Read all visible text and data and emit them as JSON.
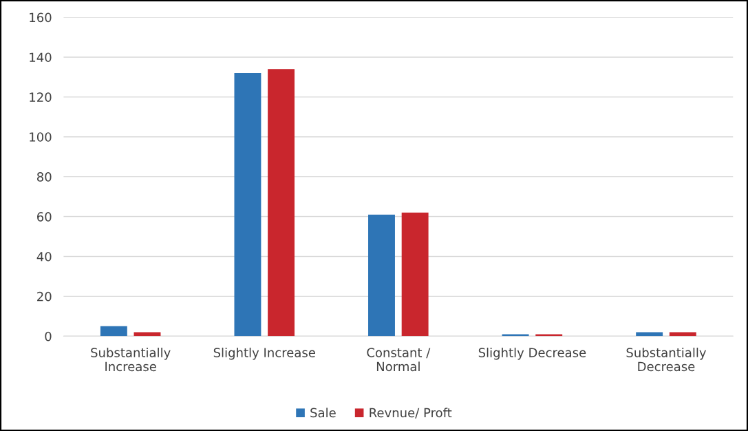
{
  "chart_data": {
    "type": "bar",
    "categories": [
      "Substantially\nIncrease",
      "Slightly Increase",
      "Constant /\nNormal",
      "Slightly Decrease",
      "Substantially\nDecrease"
    ],
    "series": [
      {
        "name": "Sale",
        "color": "#2e75b6",
        "values": [
          5,
          132,
          61,
          1,
          2
        ]
      },
      {
        "name": "Revnue/ Proft",
        "color": "#c9262d",
        "values": [
          2,
          134,
          62,
          1,
          2
        ]
      }
    ],
    "ylim": [
      0,
      160
    ],
    "yticks": [
      0,
      20,
      40,
      60,
      80,
      100,
      120,
      140,
      160
    ],
    "grid": "y",
    "legend": "bottom"
  }
}
